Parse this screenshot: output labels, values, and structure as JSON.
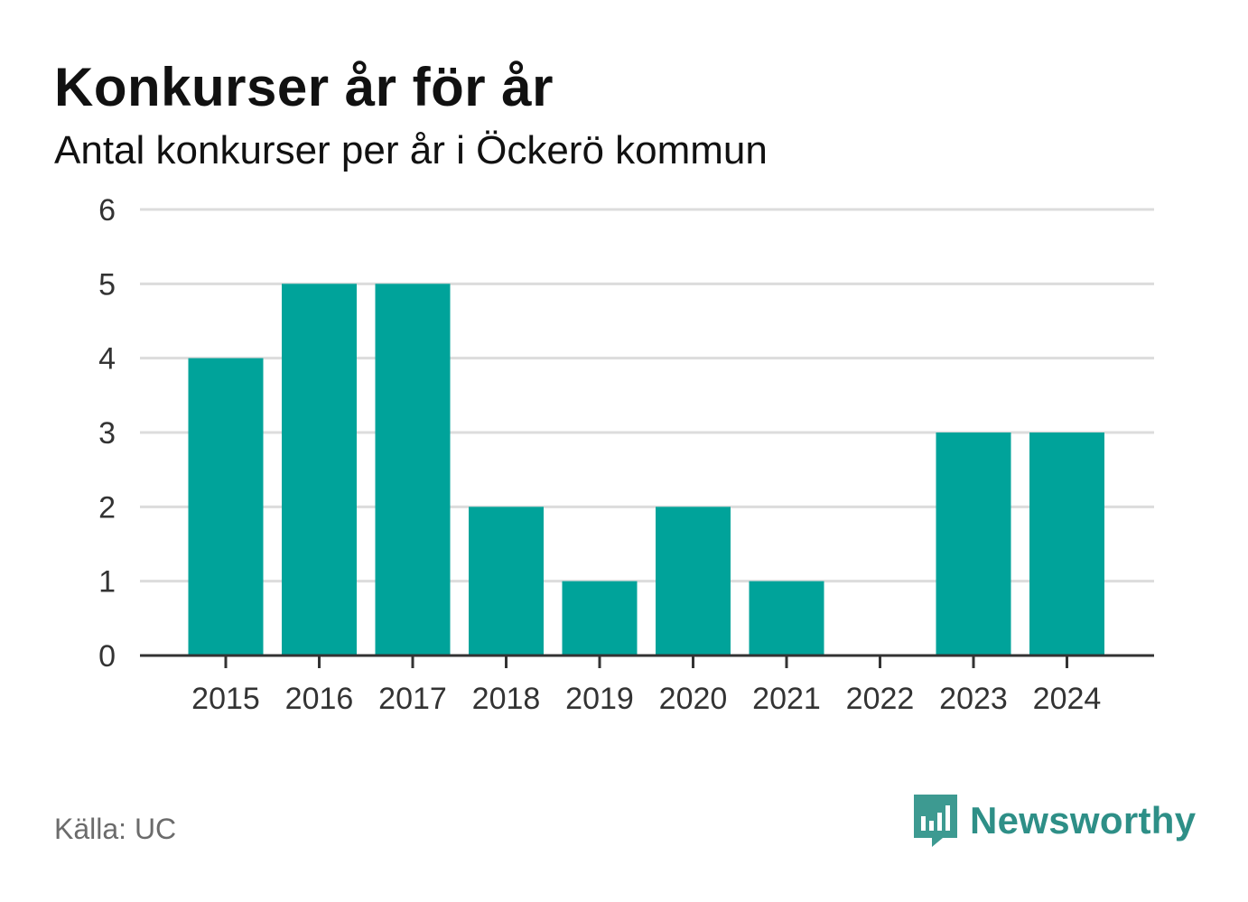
{
  "header": {
    "title": "Konkurser år för år",
    "subtitle": "Antal konkurser per år i Öckerö kommun"
  },
  "footer": {
    "source": "Källa: UC",
    "brand": "Newsworthy",
    "brand_icon": "newsworthy-logo-icon",
    "brand_color": "#2e8f87"
  },
  "chart_data": {
    "type": "bar",
    "categories": [
      "2015",
      "2016",
      "2017",
      "2018",
      "2019",
      "2020",
      "2021",
      "2022",
      "2023",
      "2024"
    ],
    "values": [
      4,
      5,
      5,
      2,
      1,
      2,
      1,
      0,
      3,
      3
    ],
    "ylim": [
      0,
      6
    ],
    "yticks": [
      "0",
      "1",
      "2",
      "3",
      "4",
      "5",
      "6"
    ],
    "grid": true,
    "bar_color": "#00a39a",
    "title": "Konkurser år för år",
    "xlabel": "",
    "ylabel": ""
  }
}
